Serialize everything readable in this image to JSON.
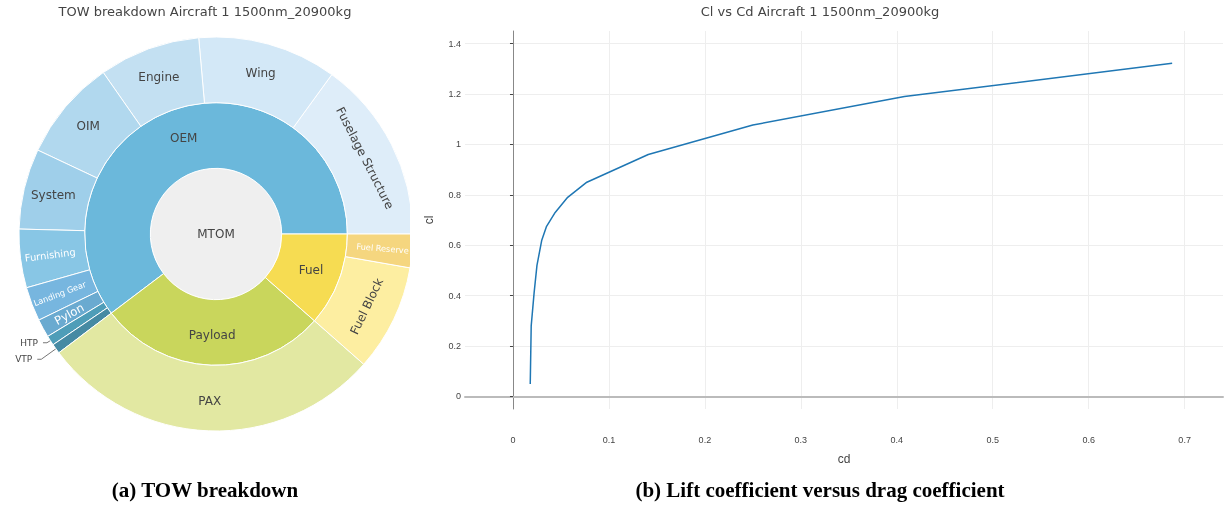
{
  "chart_data": [
    {
      "type": "pie",
      "title": "TOW breakdown Aircraft 1 1500nm_20900kg",
      "annotations": [
        "(a) TOW breakdown"
      ],
      "categories": [
        "MTOM"
      ],
      "values": [
        100
      ],
      "colors": [
        "#efefef"
      ]
    },
    {
      "type": "donut",
      "categories": [
        "OEM",
        "Payload",
        "Fuel"
      ],
      "values": [
        60.3,
        28.2,
        11.5
      ],
      "colors": [
        "#6bb8db",
        "#c9d65c",
        "#f6dc52"
      ]
    },
    {
      "type": "donut",
      "categories": [
        "Fuselage Structure",
        "Wing",
        "Engine",
        "OIM",
        "System",
        "Furnishing",
        "Landing Gear",
        "Pylon",
        "HTP",
        "VTP",
        "PAX",
        "Fuel Block",
        "Fuel Reserve"
      ],
      "values": [
        15.0,
        11.4,
        8.3,
        8.3,
        6.6,
        4.8,
        2.8,
        1.5,
        0.8,
        0.8,
        28.2,
        8.75,
        2.75
      ],
      "colors": [
        "#deedf9",
        "#d3e8f7",
        "#c3e0f2",
        "#b1d8ee",
        "#9fcfea",
        "#88c6e5",
        "#77b6df",
        "#6aaad0",
        "#4e9db8",
        "#468aa3",
        "#e2e8a2",
        "#fdeea1",
        "#f5d67f"
      ]
    },
    {
      "type": "line",
      "title": "Cl vs Cd Aircraft 1 1500nm_20900kg",
      "xlabel": "cd",
      "ylabel": "cl",
      "annotations": [
        "(b) Lift coefficient versus drag coefficient"
      ],
      "x": [
        0.018,
        0.019,
        0.022,
        0.025,
        0.03,
        0.035,
        0.044,
        0.057,
        0.077,
        0.141,
        0.25,
        0.408,
        0.687
      ],
      "series": [
        {
          "color": "#1f77b4",
          "values": [
            0.049,
            0.28,
            0.41,
            0.52,
            0.62,
            0.675,
            0.73,
            0.79,
            0.85,
            0.96,
            1.077,
            1.19,
            1.322
          ]
        }
      ],
      "xlim": [
        -0.05,
        0.74
      ],
      "xticks": [
        0,
        0.1,
        0.2,
        0.3,
        0.4,
        0.5,
        0.6,
        0.7
      ],
      "ylim": [
        -0.05,
        1.45
      ],
      "yticks": [
        0,
        0.2,
        0.4,
        0.6,
        0.8,
        1,
        1.2,
        1.4
      ],
      "grid": true,
      "marker": "none",
      "line_style": "solid"
    }
  ]
}
